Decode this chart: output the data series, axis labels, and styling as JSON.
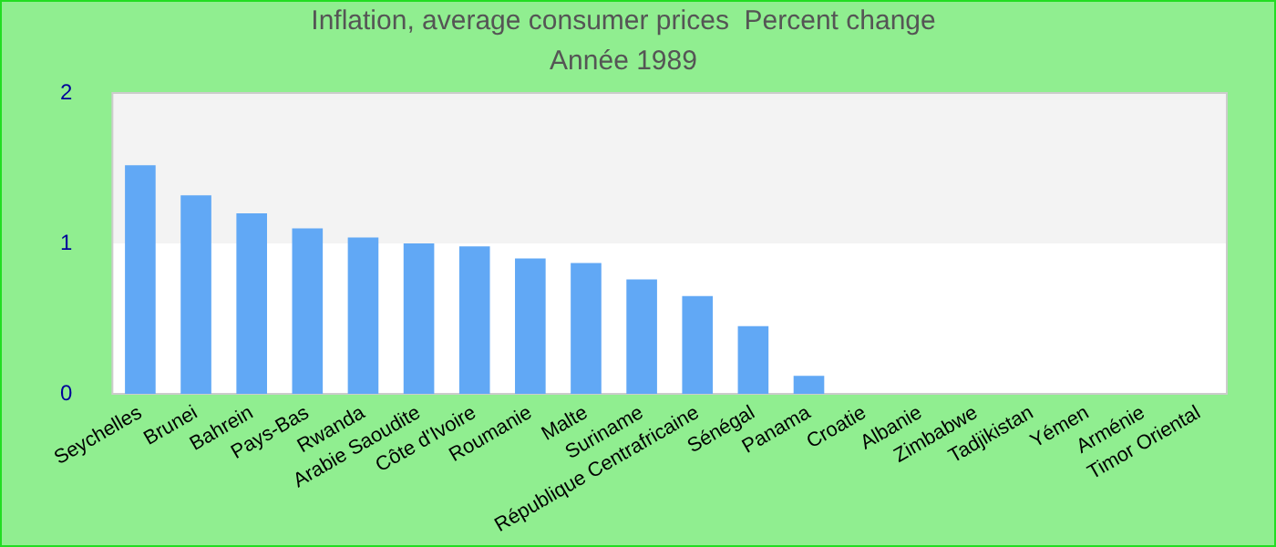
{
  "chart_data": {
    "type": "bar",
    "title": "Inflation, average consumer prices  Percent change",
    "subtitle": "Année 1989",
    "categories": [
      "Seychelles",
      "Brunei",
      "Bahrein",
      "Pays-Bas",
      "Rwanda",
      "Arabie Saoudite",
      "Côte d'Ivoire",
      "Roumanie",
      "Malte",
      "Suriname",
      "République Centrafricaine",
      "Sénégal",
      "Panama",
      "Croatie",
      "Albanie",
      "Zimbabwe",
      "Tadjikistan",
      "Yémen",
      "Arménie",
      "Timor Oriental"
    ],
    "values": [
      1.52,
      1.32,
      1.2,
      1.1,
      1.04,
      1.0,
      0.98,
      0.9,
      0.87,
      0.76,
      0.65,
      0.45,
      0.12,
      null,
      null,
      null,
      null,
      null,
      null,
      null
    ],
    "color": "#61a8f5",
    "ylim": [
      0,
      2
    ],
    "yticks": [
      0,
      1,
      2
    ],
    "bands": [
      {
        "axis": "y",
        "from": 1,
        "to": 2,
        "color": "#f3f3f3"
      }
    ]
  }
}
